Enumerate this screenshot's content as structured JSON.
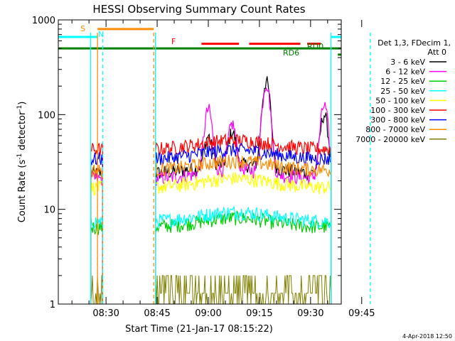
{
  "chart_data": {
    "type": "line",
    "title": "HESSI Observing Summary Count Rates",
    "xlabel": "Start Time (21-Jan-17 08:15:22)",
    "ylabel_main": "Count Rate (s",
    "ylabel_sup1": "-1",
    "ylabel_mid": " detector",
    "ylabel_sup2": "-1",
    "ylabel_end": ")",
    "y_scale": "log",
    "ylim": [
      1,
      1000
    ],
    "xlim_minutes_after_0800": [
      16,
      99
    ],
    "x_ticks": [
      {
        "t": 30,
        "label": "08:30"
      },
      {
        "t": 45,
        "label": "08:45"
      },
      {
        "t": 60,
        "label": "09:00"
      },
      {
        "t": 75,
        "label": "09:15"
      },
      {
        "t": 90,
        "label": "09:30"
      },
      {
        "t": 105,
        "label": "09:45"
      }
    ],
    "y_ticks": [
      {
        "v": 1,
        "label": "1"
      },
      {
        "v": 10,
        "label": "10"
      },
      {
        "v": 100,
        "label": "100"
      },
      {
        "v": 1000,
        "label": "1000"
      }
    ],
    "legend": {
      "header": [
        "Det 1,3, FDecim 1,",
        "Att 0"
      ],
      "placement": "right"
    },
    "series": [
      {
        "name": "3 - 6 keV",
        "color": "#000000",
        "base": 24,
        "segments": [
          [
            25.5,
            29
          ],
          [
            44.5,
            96
          ]
        ],
        "peaks": [
          [
            60,
            55
          ],
          [
            67,
            60
          ],
          [
            77,
            220
          ],
          [
            94,
            100
          ]
        ]
      },
      {
        "name": "6 - 12 keV",
        "color": "#ff00ff",
        "base": 21,
        "segments": [
          [
            25.5,
            29
          ],
          [
            44.5,
            96
          ]
        ],
        "peaks": [
          [
            60,
            110
          ],
          [
            67,
            75
          ],
          [
            77,
            210
          ],
          [
            94,
            125
          ]
        ]
      },
      {
        "name": "12 - 25 keV",
        "color": "#00cc00",
        "base": 6.5,
        "segments": [
          [
            25.5,
            29
          ],
          [
            44.5,
            96
          ]
        ],
        "peaks": []
      },
      {
        "name": "25 - 50 keV",
        "color": "#00ffff",
        "base": 7.5,
        "segments": [
          [
            25.5,
            29
          ],
          [
            44.5,
            96
          ]
        ],
        "peaks": []
      },
      {
        "name": "50 - 100 keV",
        "color": "#ffff00",
        "base": 17,
        "segments": [
          [
            25.5,
            29
          ],
          [
            44.5,
            96
          ]
        ],
        "peaks": []
      },
      {
        "name": "100 - 300 keV",
        "color": "#ff0000",
        "base": 43,
        "segments": [
          [
            25.5,
            29
          ],
          [
            44.5,
            96
          ]
        ],
        "peaks": []
      },
      {
        "name": "300 - 800 keV",
        "color": "#0000ff",
        "base": 34,
        "segments": [
          [
            25.5,
            29
          ],
          [
            44.5,
            96
          ]
        ],
        "peaks": []
      },
      {
        "name": "800 - 7000 keV",
        "color": "#ff8c00",
        "base": 26,
        "segments": [
          [
            25.5,
            29
          ],
          [
            44.5,
            96
          ]
        ],
        "peaks": []
      },
      {
        "name": "7000 - 20000 keV",
        "color": "#808000",
        "base": 1.5,
        "segments": [
          [
            25.5,
            29
          ],
          [
            44.5,
            96
          ]
        ],
        "peaks": []
      }
    ],
    "flags": [
      {
        "label": "S",
        "color": "#ff8c00",
        "y": 800,
        "segments": [
          [
            27.5,
            44
          ]
        ]
      },
      {
        "label": "N",
        "color": "#00ffff",
        "y": 660,
        "segments": [
          [
            16,
            27.5
          ],
          [
            96,
            105
          ]
        ]
      },
      {
        "label": "F",
        "color": "#ff0000",
        "y": 560,
        "segments": [
          [
            58,
            69
          ],
          [
            72,
            87
          ],
          [
            89,
            93
          ]
        ]
      },
      {
        "label": "RD0",
        "color": "#008000",
        "y": 500,
        "segments": [
          [
            16,
            99
          ]
        ]
      },
      {
        "label": "RD6",
        "color": "#008000",
        "y": 430,
        "segments": [
          [
            98,
            105
          ]
        ]
      }
    ],
    "vlines": [
      {
        "t": 25.5,
        "color": "#00ffff",
        "dash": false
      },
      {
        "t": 27.5,
        "color": "#ff8c00",
        "dash": false
      },
      {
        "t": 29,
        "color": "#00ffff",
        "dash": true
      },
      {
        "t": 44,
        "color": "#ff8c00",
        "dash": true
      },
      {
        "t": 44.5,
        "color": "#00ffff",
        "dash": false
      },
      {
        "t": 96,
        "color": "#00ffff",
        "dash": false
      },
      {
        "t": 107.5,
        "color": "#00ffff",
        "dash": true
      }
    ],
    "timestamp": "4-Apr-2018 12:50"
  }
}
